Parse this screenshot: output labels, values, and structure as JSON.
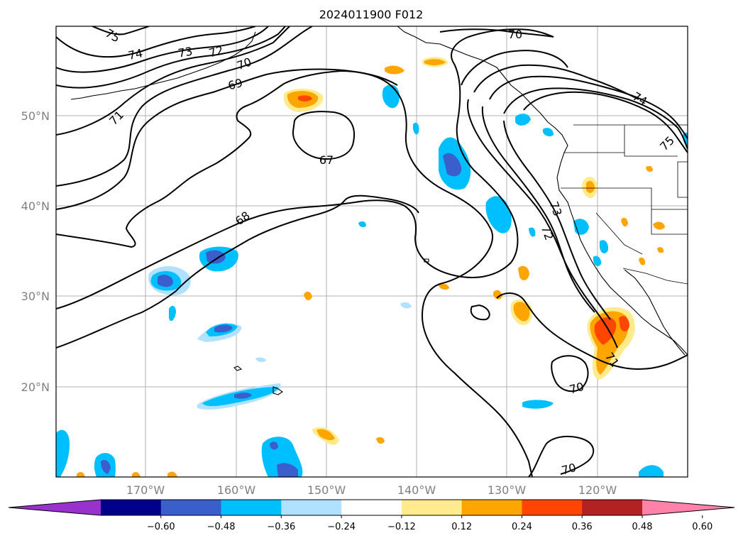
{
  "title": "2024011900 F012",
  "map": {
    "lat_labels": [
      "50°N",
      "40°N",
      "30°N",
      "20°N"
    ],
    "lon_labels": [
      "170°W",
      "160°W",
      "150°W",
      "140°W",
      "130°W",
      "120°W"
    ],
    "contour_labels": [
      "75",
      "74",
      "73",
      "72",
      "70",
      "71",
      "69",
      "67",
      "68",
      "70",
      "74",
      "75",
      "73",
      "72",
      "71",
      "70",
      "70"
    ]
  },
  "colorbar": {
    "ticks": [
      "−0.60",
      "−0.48",
      "−0.36",
      "−0.24",
      "−0.12",
      "0.12",
      "0.24",
      "0.36",
      "0.48",
      "0.60"
    ],
    "colors": [
      "#9932cc",
      "#00008b",
      "#3a5fcd",
      "#00bfff",
      "#b0e2ff",
      "#ffffff",
      "#ffeb8c",
      "#ffa500",
      "#ff4500",
      "#b22222",
      "#ff82ab"
    ]
  }
}
